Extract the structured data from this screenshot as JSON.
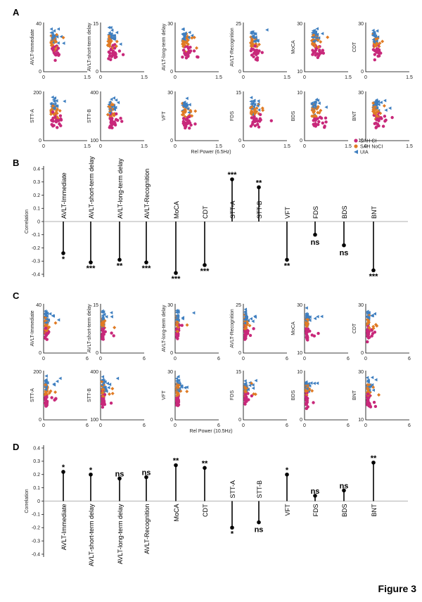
{
  "figure_title": "Figure 3",
  "colors": {
    "sah_ci": "#c8287a",
    "sah_noci": "#e07b24",
    "uia": "#3f7fc0"
  },
  "legend": {
    "items": [
      "SAH CI",
      "SAH NoCI",
      "UIA"
    ]
  },
  "chart_data": [
    {
      "panel": "A",
      "type": "scatter",
      "xlabel": "Rel Power (6.5Hz)",
      "xticks": [
        "0",
        "1.5"
      ],
      "series_names": [
        "SAH CI",
        "SAH NoCI",
        "UIA"
      ],
      "subplots": [
        {
          "ylabel": "AVLT-Immediate",
          "ylim": [
            0,
            40
          ],
          "yticks": [
            "0",
            "40"
          ],
          "xmax": 1.5
        },
        {
          "ylabel": "AVLT-short-term delay",
          "ylim": [
            0,
            15
          ],
          "yticks": [
            "0",
            "15"
          ],
          "xmax": 1.5
        },
        {
          "ylabel": "AVLT-long-term delay",
          "ylim": [
            0,
            30
          ],
          "yticks": [
            "0",
            "30"
          ],
          "xmax": 1.5
        },
        {
          "ylabel": "AVLT-Recognition",
          "ylim": [
            0,
            25
          ],
          "yticks": [
            "0",
            "25"
          ],
          "xmax": 1.5
        },
        {
          "ylabel": "MoCA",
          "ylim": [
            10,
            30
          ],
          "yticks": [
            "10",
            "30"
          ],
          "xmax": 1.5
        },
        {
          "ylabel": "CDT",
          "ylim": [
            0,
            30
          ],
          "yticks": [
            "0",
            "30"
          ],
          "xmax": 1.5
        },
        {
          "ylabel": "STT-A",
          "ylim": [
            0,
            200
          ],
          "yticks": [
            "0",
            "200"
          ],
          "xmax": 1.5
        },
        {
          "ylabel": "STT-B",
          "ylim": [
            100,
            400
          ],
          "yticks": [
            "100",
            "400"
          ],
          "xmax": 1.5
        },
        {
          "ylabel": "VFT",
          "ylim": [
            0,
            30
          ],
          "yticks": [
            "0",
            "30"
          ],
          "xmax": 1.5
        },
        {
          "ylabel": "FDS",
          "ylim": [
            0,
            15
          ],
          "yticks": [
            "0",
            "15"
          ],
          "xmax": 1.5
        },
        {
          "ylabel": "BDS",
          "ylim": [
            0,
            10
          ],
          "yticks": [
            "0",
            "10"
          ],
          "xmax": 1.5
        },
        {
          "ylabel": "BNT",
          "ylim": [
            10,
            30
          ],
          "yticks": [
            "10",
            "30"
          ],
          "xmax": 1.5
        }
      ]
    },
    {
      "panel": "B",
      "type": "lollipop",
      "ylabel": "Correlation",
      "ylim": [
        -0.4,
        0.4
      ],
      "yticks": [
        "0.4",
        "0.3",
        "0.2",
        "0.1",
        "0",
        "-0.1",
        "-0.2",
        "-0.3",
        "-0.4"
      ],
      "categories": [
        "AVLT-Immediate",
        "AVLT-short-term delay",
        "AVLT-long-term delay",
        "AVLT-Recognition",
        "MoCA",
        "CDT",
        "STT-A",
        "STT-B",
        "VFT",
        "FDS",
        "BDS",
        "BNT"
      ],
      "values": [
        -0.24,
        -0.31,
        -0.29,
        -0.31,
        -0.39,
        -0.33,
        0.32,
        0.26,
        -0.29,
        -0.1,
        -0.18,
        -0.37
      ],
      "significance": [
        "*",
        "***",
        "**",
        "***",
        "***",
        "***",
        "***",
        "**",
        "**",
        "ns",
        "ns",
        "***"
      ]
    },
    {
      "panel": "C",
      "type": "scatter",
      "xlabel": "Rel Power (10.5Hz)",
      "xticks": [
        "0",
        "6"
      ],
      "series_names": [
        "SAH CI",
        "SAH NoCI",
        "UIA"
      ],
      "subplots": [
        {
          "ylabel": "AVLT-Immediate",
          "ylim": [
            0,
            40
          ],
          "yticks": [
            "0",
            "40"
          ],
          "xmax": 6
        },
        {
          "ylabel": "AVLT-short-term delay",
          "ylim": [
            0,
            15
          ],
          "yticks": [
            "0",
            "15"
          ],
          "xmax": 6
        },
        {
          "ylabel": "AVLT-long-term delay",
          "ylim": [
            0,
            30
          ],
          "yticks": [
            "0",
            "30"
          ],
          "xmax": 6
        },
        {
          "ylabel": "AVLT-Recognition",
          "ylim": [
            0,
            25
          ],
          "yticks": [
            "0",
            "25"
          ],
          "xmax": 6
        },
        {
          "ylabel": "MoCA",
          "ylim": [
            10,
            30
          ],
          "yticks": [
            "10",
            "30"
          ],
          "xmax": 6
        },
        {
          "ylabel": "CDT",
          "ylim": [
            0,
            30
          ],
          "yticks": [
            "0",
            "30"
          ],
          "xmax": 6
        },
        {
          "ylabel": "STT-A",
          "ylim": [
            0,
            200
          ],
          "yticks": [
            "0",
            "200"
          ],
          "xmax": 6
        },
        {
          "ylabel": "STT-B",
          "ylim": [
            100,
            400
          ],
          "yticks": [
            "100",
            "400"
          ],
          "xmax": 6
        },
        {
          "ylabel": "VFT",
          "ylim": [
            0,
            30
          ],
          "yticks": [
            "0",
            "30"
          ],
          "xmax": 6
        },
        {
          "ylabel": "FDS",
          "ylim": [
            0,
            15
          ],
          "yticks": [
            "0",
            "15"
          ],
          "xmax": 6
        },
        {
          "ylabel": "BDS",
          "ylim": [
            0,
            10
          ],
          "yticks": [
            "0",
            "10"
          ],
          "xmax": 6
        },
        {
          "ylabel": "BNT",
          "ylim": [
            10,
            30
          ],
          "yticks": [
            "10",
            "30"
          ],
          "xmax": 6
        }
      ]
    },
    {
      "panel": "D",
      "type": "lollipop",
      "ylabel": "Correlation",
      "ylim": [
        -0.4,
        0.4
      ],
      "yticks": [
        "0.4",
        "0.3",
        "0.2",
        "0.1",
        "0",
        "-0.1",
        "-0.2",
        "-0.3",
        "-0.4"
      ],
      "categories": [
        "AVLT-Immediate",
        "AVLT-short-term delay",
        "AVLT-long-term delay",
        "AVLT-Recognition",
        "MoCA",
        "CDT",
        "STT-A",
        "STT-B",
        "VFT",
        "FDS",
        "BDS",
        "BNT"
      ],
      "values": [
        0.22,
        0.2,
        0.17,
        0.18,
        0.27,
        0.25,
        -0.2,
        -0.16,
        0.2,
        0.04,
        0.08,
        0.29
      ],
      "significance": [
        "*",
        "*",
        "ns",
        "ns",
        "**",
        "**",
        "*",
        "ns",
        "*",
        "ns",
        "ns",
        "**"
      ]
    }
  ]
}
